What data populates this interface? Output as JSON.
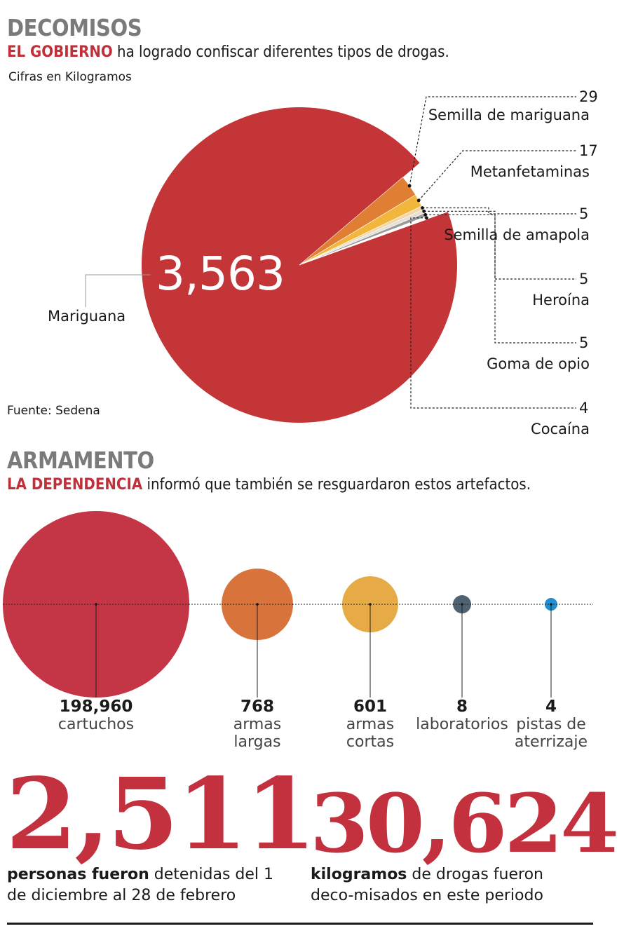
{
  "decomisos": {
    "title": "DECOMISOS",
    "subtitle_bold": "EL GOBIERNO",
    "subtitle_rest": " ha logrado confiscar diferentes tipos de drogas.",
    "units_note": "Cifras en Kilogramos",
    "source": "Fuente: Sedena",
    "center_value": "3,563",
    "center_label": "Mariguana"
  },
  "armamento": {
    "title": "ARMAMENTO",
    "subtitle_bold": "LA DEPENDENCIA",
    "subtitle_rest": " informó que también se resguardaron estos artefactos."
  },
  "chart_data": [
    {
      "type": "pie",
      "units": "Kilogramos",
      "slices": [
        {
          "label": "Mariguana",
          "value": 3563,
          "display": "3,563",
          "color": "#c43537"
        },
        {
          "label": "Semilla de mariguana",
          "value": 29,
          "display": "29",
          "color": "#e07f34"
        },
        {
          "label": "Metanfetaminas",
          "value": 17,
          "display": "17",
          "color": "#f2b63c"
        },
        {
          "label": "Semilla de amapola",
          "value": 5,
          "display": "5",
          "color": "#f3d6a8"
        },
        {
          "label": "Heroína",
          "value": 5,
          "display": "5",
          "color": "#e5e0d8"
        },
        {
          "label": "Goma de opio",
          "value": 5,
          "display": "5",
          "color": "#9a9a9a"
        },
        {
          "label": "Cocaína",
          "value": 4,
          "display": "4",
          "color": "#ffffff"
        }
      ]
    },
    {
      "type": "bubble",
      "items": [
        {
          "value": 198960,
          "display": "198,960",
          "label_lines": [
            "cartuchos"
          ],
          "color": "#c43545"
        },
        {
          "value": 768,
          "display": "768",
          "label_lines": [
            "armas",
            "largas"
          ],
          "color": "#d9733c"
        },
        {
          "value": 601,
          "display": "601",
          "label_lines": [
            "armas",
            "cortas"
          ],
          "color": "#e6ab46"
        },
        {
          "value": 8,
          "display": "8",
          "label_lines": [
            "laboratorios"
          ],
          "color": "#4f6272"
        },
        {
          "value": 4,
          "display": "4",
          "label_lines": [
            "pistas de",
            "aterrizaje"
          ],
          "color": "#1f8fd0"
        }
      ]
    }
  ],
  "stats": [
    {
      "number": "2,511",
      "bold": "personas fueron",
      "rest": " detenidas del 1 de diciembre al 28 de febrero"
    },
    {
      "number": "30,624",
      "bold": "kilogramos",
      "rest": " de drogas fueron deco-misados en este periodo"
    }
  ]
}
